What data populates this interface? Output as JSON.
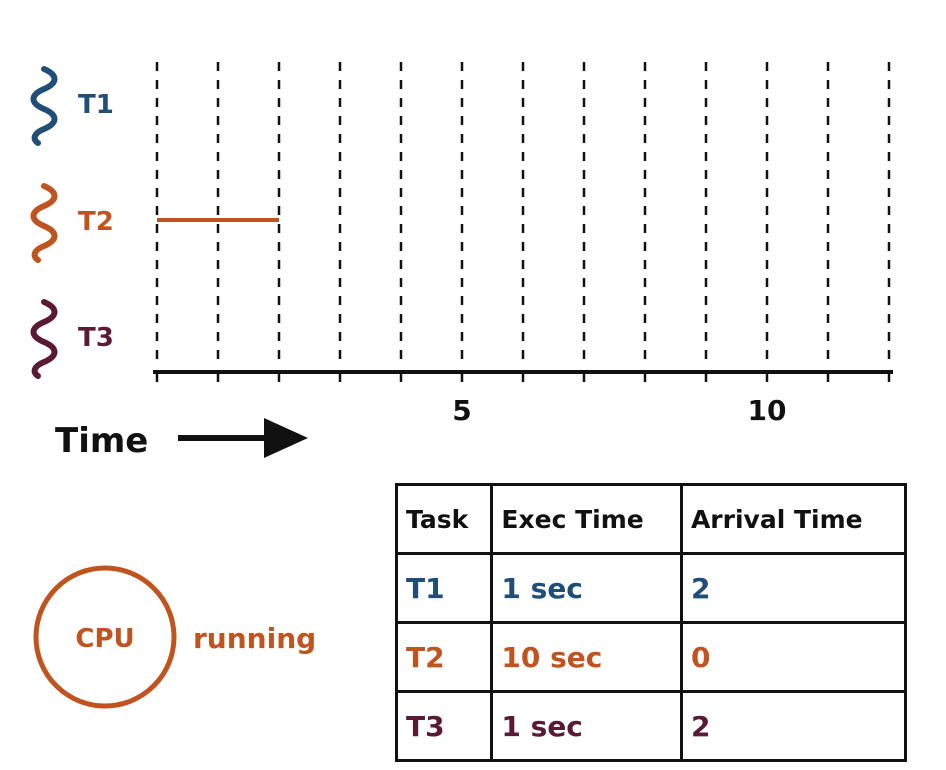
{
  "threads": [
    {
      "id": "T1",
      "label": "T1",
      "color": "#1f4e79"
    },
    {
      "id": "T2",
      "label": "T2",
      "color": "#c0531e"
    },
    {
      "id": "T3",
      "label": "T3",
      "color": "#5b1a33"
    }
  ],
  "timeline": {
    "min": 0,
    "max": 12,
    "tick_labels": [
      {
        "value": 5,
        "label": "5"
      },
      {
        "value": 10,
        "label": "10"
      }
    ],
    "axis_label": "Time",
    "executions": [
      {
        "thread": "T2",
        "start": 0,
        "end": 2
      }
    ]
  },
  "cpu": {
    "label": "CPU",
    "status": "running",
    "color": "#c0531e"
  },
  "table": {
    "headers": [
      "Task",
      "Exec Time",
      "Arrival Time"
    ],
    "rows": [
      {
        "task": "T1",
        "exec": "1 sec",
        "arrival": "2",
        "color": "#1f4e79"
      },
      {
        "task": "T2",
        "exec": "10 sec",
        "arrival": "0",
        "color": "#c0531e"
      },
      {
        "task": "T3",
        "exec": "1 sec",
        "arrival": "2",
        "color": "#5b1a33"
      }
    ]
  }
}
